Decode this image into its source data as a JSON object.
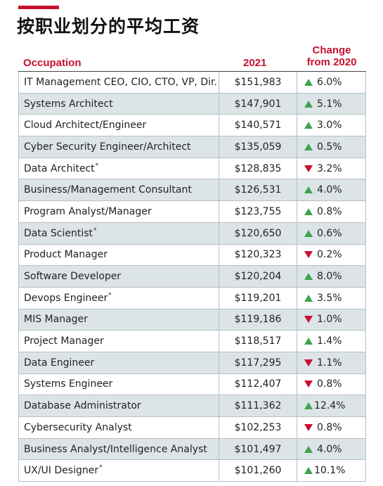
{
  "title": "按职业划分的平均工资",
  "headers": {
    "occupation": "Occupation",
    "year": "2021",
    "change_line1": "Change",
    "change_line2": "from 2020"
  },
  "colors": {
    "accent": "#c8102e",
    "up": "#3fa34d",
    "down": "#c8102e",
    "alt_row": "#dde4e8"
  },
  "rows": [
    {
      "occupation": "IT Management CEO, CIO, CTO, VP, Dir.",
      "note": "",
      "salary": "$151,983",
      "dir": "up",
      "change": "6.0%"
    },
    {
      "occupation": "Systems Architect",
      "note": "",
      "salary": "$147,901",
      "dir": "up",
      "change": "5.1%"
    },
    {
      "occupation": "Cloud Architect/Engineer",
      "note": "",
      "salary": "$140,571",
      "dir": "up",
      "change": "3.0%"
    },
    {
      "occupation": "Cyber Security Engineer/Architect",
      "note": "",
      "salary": "$135,059",
      "dir": "up",
      "change": "0.5%"
    },
    {
      "occupation": "Data Architect",
      "note": "*",
      "salary": "$128,835",
      "dir": "down",
      "change": "3.2%"
    },
    {
      "occupation": "Business/Management Consultant",
      "note": "",
      "salary": "$126,531",
      "dir": "up",
      "change": "4.0%"
    },
    {
      "occupation": "Program Analyst/Manager",
      "note": "",
      "salary": "$123,755",
      "dir": "up",
      "change": "0.8%"
    },
    {
      "occupation": "Data Scientist",
      "note": "*",
      "salary": "$120,650",
      "dir": "up",
      "change": "0.6%"
    },
    {
      "occupation": "Product Manager",
      "note": "",
      "salary": "$120,323",
      "dir": "down",
      "change": "0.2%"
    },
    {
      "occupation": "Software Developer",
      "note": "",
      "salary": "$120,204",
      "dir": "up",
      "change": "8.0%"
    },
    {
      "occupation": "Devops Engineer",
      "note": "*",
      "salary": "$119,201",
      "dir": "up",
      "change": "3.5%"
    },
    {
      "occupation": "MIS Manager",
      "note": "",
      "salary": "$119,186",
      "dir": "down",
      "change": "1.0%"
    },
    {
      "occupation": "Project Manager",
      "note": "",
      "salary": "$118,517",
      "dir": "up",
      "change": "1.4%"
    },
    {
      "occupation": "Data Engineer",
      "note": "",
      "salary": "$117,295",
      "dir": "down",
      "change": "1.1%"
    },
    {
      "occupation": "Systems Engineer",
      "note": "",
      "salary": "$112,407",
      "dir": "down",
      "change": "0.8%"
    },
    {
      "occupation": "Database Administrator",
      "note": "",
      "salary": "$111,362",
      "dir": "up",
      "change": "12.4%"
    },
    {
      "occupation": "Cybersecurity Analyst",
      "note": "",
      "salary": "$102,253",
      "dir": "down",
      "change": "0.8%"
    },
    {
      "occupation": "Business Analyst/Intelligence Analyst",
      "note": "",
      "salary": "$101,497",
      "dir": "up",
      "change": "4.0%"
    },
    {
      "occupation": "UX/UI Designer",
      "note": "*",
      "salary": "$101,260",
      "dir": "up",
      "change": "10.1%"
    }
  ]
}
